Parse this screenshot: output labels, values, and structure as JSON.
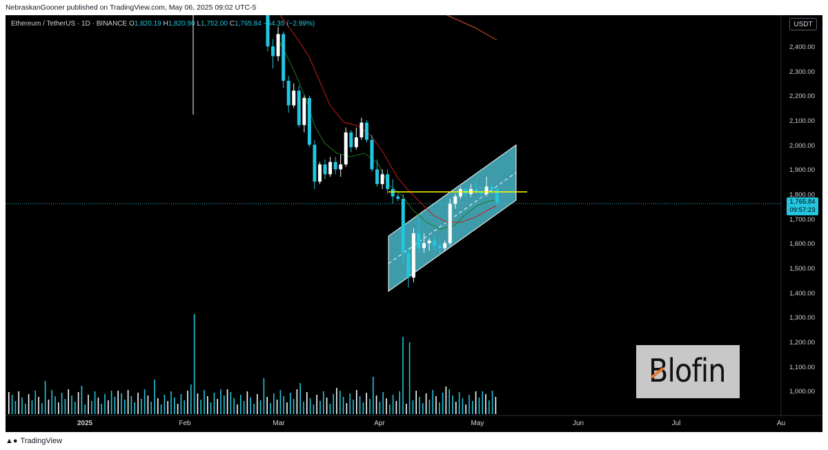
{
  "header": {
    "published": "NebraskanGooner published on TradingView.com, May 06, 2025 09:02 UTC-5"
  },
  "legend": {
    "symbol": "Ethereum / TetherUS · 1D · BINANCE",
    "open_label": "O",
    "open": "1,820.19",
    "high_label": "H",
    "high": "1,820.90",
    "low_label": "L",
    "low": "1,752.00",
    "close_label": "C",
    "close": "1,765.84",
    "change": "−54.35 (−2.99%)"
  },
  "toolbar": {
    "currency": "USDT"
  },
  "price_badge": {
    "price": "1,765.84",
    "countdown": "09:57:23"
  },
  "watermark": {
    "brand": "Blofin"
  },
  "footer": {
    "brand": "TradingView"
  },
  "colors": {
    "background": "#000000",
    "candle": "#22c6df",
    "candle_up": "#ffffff",
    "channel_fill": "#4fc7da",
    "resistance_line": "#ffff00",
    "ema_fast": "#1f7a1f",
    "ema_mid": "#c81e1e",
    "ema_slow": "#e0522a"
  },
  "chart_data": {
    "type": "candlestick",
    "symbol": "ETHUSDT",
    "timeframe": "1D",
    "exchange": "BINANCE",
    "y_axis": {
      "ticks": [
        "2,400.00",
        "2,300.00",
        "2,200.00",
        "2,100.00",
        "2,000.00",
        "1,900.00",
        "1,800.00",
        "1,700.00",
        "1,600.00",
        "1,500.00",
        "1,400.00",
        "1,300.00",
        "1,200.00",
        "1,100.00",
        "1,000.00"
      ],
      "range": [
        900,
        2560
      ]
    },
    "x_axis": {
      "ticks": [
        "2025",
        "Feb",
        "Mar",
        "Apr",
        "May",
        "Jun",
        "Jul",
        "Au"
      ]
    },
    "last_price": 1765.84,
    "horizontal_line": 1810,
    "candles": [
      [
        2600,
        2620,
        2380,
        2400
      ],
      [
        2400,
        2430,
        2310,
        2360
      ],
      [
        2360,
        2480,
        2340,
        2450
      ],
      [
        2450,
        2460,
        2230,
        2260
      ],
      [
        2260,
        2280,
        2130,
        2160
      ],
      [
        2160,
        2250,
        2150,
        2220
      ],
      [
        2220,
        2240,
        2070,
        2080
      ],
      [
        2080,
        2200,
        2050,
        2190
      ],
      [
        2190,
        2200,
        1990,
        2000
      ],
      [
        2000,
        2020,
        1820,
        1850
      ],
      [
        1850,
        1930,
        1840,
        1920
      ],
      [
        1920,
        1940,
        1860,
        1880
      ],
      [
        1880,
        1950,
        1870,
        1930
      ],
      [
        1930,
        1950,
        1880,
        1900
      ],
      [
        1900,
        1960,
        1870,
        1920
      ],
      [
        1920,
        2070,
        1910,
        2050
      ],
      [
        2050,
        2060,
        1970,
        1990
      ],
      [
        1990,
        2070,
        1980,
        2030
      ],
      [
        2030,
        2110,
        2020,
        2090
      ],
      [
        2090,
        2100,
        2010,
        2020
      ],
      [
        2020,
        2040,
        1890,
        1900
      ],
      [
        1900,
        1940,
        1830,
        1840
      ],
      [
        1840,
        1900,
        1820,
        1880
      ],
      [
        1880,
        1900,
        1800,
        1820
      ],
      [
        1820,
        1860,
        1760,
        1790
      ],
      [
        1790,
        1800,
        1770,
        1780
      ],
      [
        1780,
        1800,
        1520,
        1560
      ],
      [
        1560,
        1580,
        1420,
        1460
      ],
      [
        1460,
        1660,
        1440,
        1640
      ],
      [
        1640,
        1700,
        1560,
        1580
      ],
      [
        1580,
        1640,
        1560,
        1600
      ],
      [
        1600,
        1620,
        1570,
        1610
      ],
      [
        1610,
        1630,
        1570,
        1590
      ],
      [
        1590,
        1600,
        1560,
        1580
      ],
      [
        1580,
        1610,
        1570,
        1600
      ],
      [
        1600,
        1780,
        1590,
        1760
      ],
      [
        1760,
        1800,
        1740,
        1790
      ],
      [
        1790,
        1830,
        1780,
        1820
      ],
      [
        1820,
        1830,
        1790,
        1800
      ],
      [
        1800,
        1840,
        1790,
        1820
      ],
      [
        1820,
        1850,
        1800,
        1810
      ],
      [
        1810,
        1830,
        1780,
        1800
      ],
      [
        1800,
        1870,
        1790,
        1830
      ],
      [
        1830,
        1840,
        1800,
        1820
      ],
      [
        1820,
        1821,
        1752,
        1766
      ]
    ]
  }
}
